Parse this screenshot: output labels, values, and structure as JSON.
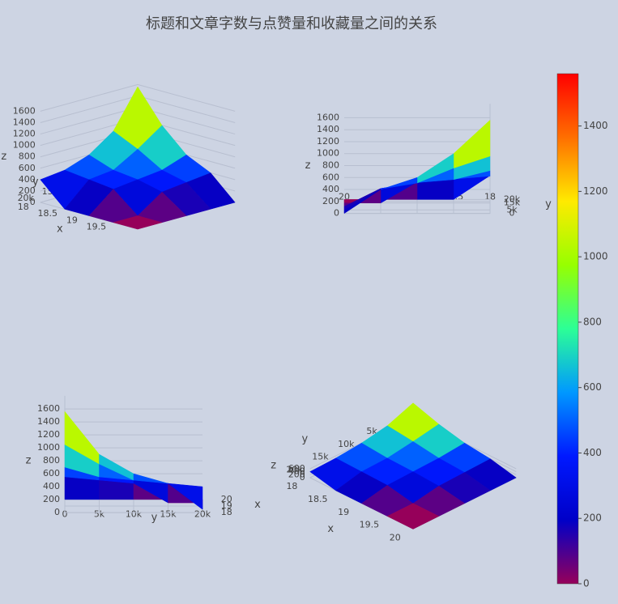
{
  "chart_data": {
    "type": "surface",
    "title": "标题和文章字数与点赞量和收藏量之间的关系",
    "x": [
      18,
      18.5,
      19,
      19.5,
      20
    ],
    "y": [
      0,
      5000,
      10000,
      15000,
      20000
    ],
    "z": [
      [
        1560,
        1000,
        600,
        400,
        0
      ],
      [
        900,
        700,
        450,
        350,
        0
      ],
      [
        600,
        450,
        400,
        300,
        0
      ],
      [
        450,
        400,
        350,
        0,
        0
      ],
      [
        400,
        0,
        0,
        0,
        0
      ]
    ],
    "xlim": [
      18,
      20
    ],
    "ylim": [
      0,
      20000
    ],
    "zlim": [
      0,
      1600
    ],
    "colorscale": [
      [
        0,
        "rgb(150,0,90)"
      ],
      [
        0.125,
        "rgb(0,0,200)"
      ],
      [
        0.25,
        "rgb(0,25,255)"
      ],
      [
        0.375,
        "rgb(0,152,255)"
      ],
      [
        0.5,
        "rgb(44,255,150)"
      ],
      [
        0.625,
        "rgb(151,255,0)"
      ],
      [
        0.75,
        "rgb(255,234,0)"
      ],
      [
        0.875,
        "rgb(255,111,0)"
      ],
      [
        1,
        "rgb(255,0,0)"
      ]
    ],
    "colorbar": {
      "range": [
        0,
        1560
      ],
      "ticks": [
        0,
        200,
        400,
        600,
        800,
        1000,
        1200,
        1400
      ]
    },
    "scenes": [
      {
        "xtitle": "x",
        "ytitle": "y",
        "ztitle": "z",
        "xticks": [
          18,
          18.5,
          19,
          19.5
        ],
        "yticks": [
          0,
          {
            "value": 5000,
            "label": "5k"
          },
          {
            "value": 10000,
            "label": "10k"
          },
          {
            "value": 15000,
            "label": "15k"
          },
          {
            "value": 20000,
            "label": "20k"
          }
        ],
        "zticks": [
          0,
          200,
          400,
          600,
          800,
          1000,
          1200,
          1400,
          1600
        ]
      },
      {
        "xtitle": "x",
        "ytitle": "y",
        "ztitle": "z",
        "xticks": [
          20,
          19.5,
          19,
          18.5,
          18
        ],
        "yticks": [
          0,
          {
            "value": 5000,
            "label": "5k"
          },
          {
            "value": 15000,
            "label": "15k"
          },
          {
            "value": 20000,
            "label": "20k"
          }
        ],
        "zticks": [
          0,
          200,
          400,
          600,
          800,
          1000,
          1200,
          1400,
          1600
        ]
      },
      {
        "xtitle": "x",
        "ytitle": "y",
        "ztitle": "z",
        "xticks": [
          18,
          19,
          20
        ],
        "yticks": [
          0,
          {
            "value": 5000,
            "label": "5k"
          },
          {
            "value": 10000,
            "label": "10k"
          },
          {
            "value": 15000,
            "label": "15k"
          },
          {
            "value": 20000,
            "label": "20k"
          }
        ],
        "zticks": [
          0,
          200,
          400,
          600,
          800,
          1000,
          1200,
          1400,
          1600
        ]
      },
      {
        "xtitle": "x",
        "ytitle": "y",
        "ztitle": "z",
        "xticks": [
          18,
          18.5,
          19,
          19.5,
          20
        ],
        "yticks": [
          {
            "value": 5000,
            "label": "5k"
          },
          {
            "value": 10000,
            "label": "10k"
          },
          {
            "value": 15000,
            "label": "15k"
          },
          {
            "value": 20000,
            "label": "20k"
          }
        ],
        "zticks": [
          0,
          200,
          400,
          600
        ]
      }
    ]
  }
}
